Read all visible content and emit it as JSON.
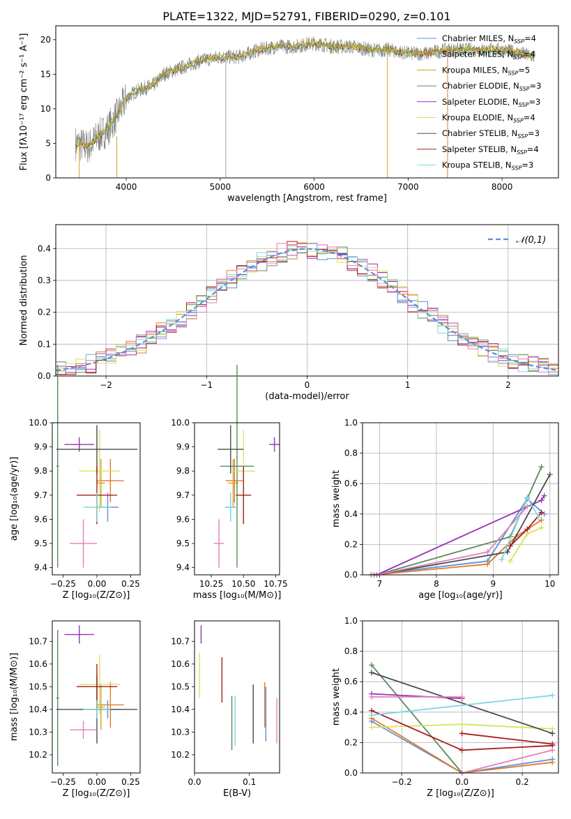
{
  "figure_title": "PLATE=1322, MJD=52791, FIBERID=0290, z=0.101",
  "colors": {
    "Chabrier MILES": "#5b8fd6",
    "Salpeter MILES": "#e27a2a",
    "Kroupa MILES": "#c9a227",
    "Chabrier ELODIE": "#5a8a5a",
    "Salpeter ELODIE": "#9a2fb8",
    "Kroupa ELODIE": "#d6e45a",
    "Chabrier STELIB": "#4b4b4b",
    "Salpeter STELIB": "#a81c1c",
    "Kroupa STELIB": "#7fd6e0",
    "Pink": "#e27fb8",
    "Normal": "#5b8fd6"
  },
  "chart_data": [
    {
      "id": "spectrum",
      "type": "line",
      "xlabel": "wavelength [Angstrom, rest frame]",
      "ylabel": "Flux [fλ10⁻¹⁷ erg cm⁻² s⁻¹ A⁻¹]",
      "xlim": [
        3250,
        8600
      ],
      "ylim": [
        0,
        22
      ],
      "xticks": [
        4000,
        5000,
        6000,
        7000,
        8000
      ],
      "yticks": [
        0,
        5,
        10,
        15,
        20
      ],
      "legend_position": "right",
      "legend": [
        {
          "label": "Chabrier MILES, N",
          "sub": "SSP",
          "n": "=4"
        },
        {
          "label": "Salpeter MILES, N",
          "sub": "SSP",
          "n": "=4"
        },
        {
          "label": "Kroupa MILES, N",
          "sub": "SSP",
          "n": "=5"
        },
        {
          "label": "Chabrier ELODIE, N",
          "sub": "SSP",
          "n": "=3"
        },
        {
          "label": "Salpeter ELODIE, N",
          "sub": "SSP",
          "n": "=3"
        },
        {
          "label": "Kroupa ELODIE, N",
          "sub": "SSP",
          "n": "=4"
        },
        {
          "label": "Chabrier STELIB, N",
          "sub": "SSP",
          "n": "=3"
        },
        {
          "label": "Salpeter STELIB, N",
          "sub": "SSP",
          "n": "=4"
        },
        {
          "label": "Kroupa STELIB, N",
          "sub": "SSP",
          "n": "=3"
        }
      ],
      "observed_trend": {
        "x": [
          3460,
          3600,
          3700,
          3800,
          3900,
          4000,
          4100,
          4200,
          4300,
          4400,
          4500,
          4600,
          4800,
          5000,
          5200,
          5400,
          5600,
          5800,
          6000,
          6200,
          6400,
          6600,
          6800,
          7000,
          7200,
          7400,
          7600,
          7800,
          8000,
          8200,
          8350
        ],
        "y": [
          5.0,
          4.5,
          6.0,
          7.0,
          9.0,
          11.5,
          12.5,
          13.0,
          13.5,
          15.0,
          15.5,
          16.0,
          17.0,
          17.5,
          17.5,
          18.5,
          19.0,
          19.0,
          19.5,
          19.0,
          19.0,
          18.5,
          18.5,
          18.0,
          18.0,
          18.5,
          18.5,
          18.5,
          18.5,
          18.0,
          17.5
        ]
      },
      "spikes": [
        {
          "x": 3500,
          "y1": 5,
          "y2": 0
        },
        {
          "x": 3900,
          "y1": 6,
          "y2": 0
        },
        {
          "x": 5060,
          "y1": 18,
          "y2": 0
        },
        {
          "x": 6780,
          "y1": 19,
          "y2": 0
        },
        {
          "x": 7420,
          "y1": 19,
          "y2": 0
        }
      ]
    },
    {
      "id": "residuals",
      "type": "area",
      "xlabel": "(data-model)/error",
      "ylabel": "Normed distribution",
      "xlim": [
        -2.5,
        2.5
      ],
      "ylim": [
        0,
        0.475
      ],
      "xticks": [
        -2,
        -1,
        0,
        1,
        2
      ],
      "xtick_labels": [
        "−2",
        "−1",
        "0",
        "1",
        "2"
      ],
      "yticks": [
        0,
        0.1,
        0.2,
        0.3,
        0.4
      ],
      "ytick_labels": [
        "0.0",
        "0.1",
        "0.2",
        "0.3",
        "0.4"
      ],
      "grid": true,
      "legend_position": "top-right",
      "legend_label": "𝒩(0,1)",
      "series_note": "stepped histograms, one per model, around a standard normal curve"
    },
    {
      "id": "age_vs_Z",
      "type": "scatter",
      "xlabel": "Z [log₁₀(Z/Z⊙)]",
      "ylabel": "age  [log₁₀(age/yr)]",
      "xlim": [
        -0.33,
        0.32
      ],
      "ylim": [
        9.37,
        10.0
      ],
      "xticks": [
        -0.25,
        0.0,
        0.25
      ],
      "xtick_labels": [
        "−0.25",
        "0.00",
        "0.25"
      ],
      "yticks": [
        9.4,
        9.5,
        9.6,
        9.7,
        9.8,
        9.9,
        10.0
      ],
      "ytick_labels": [
        "9.4",
        "9.5",
        "9.6",
        "9.7",
        "9.8",
        "9.9",
        "10.0"
      ],
      "points": [
        {
          "model": "Chabrier MILES",
          "x": 0.08,
          "xerr": 0.08,
          "y": 9.65,
          "yerr": 0.06
        },
        {
          "model": "Salpeter MILES",
          "x": 0.1,
          "xerr": 0.1,
          "y": 9.76,
          "yerr": 0.09
        },
        {
          "model": "Kroupa MILES",
          "x": 0.03,
          "xerr": 0.03,
          "y": 9.75,
          "yerr": 0.1
        },
        {
          "model": "Chabrier ELODIE",
          "x": -0.29,
          "xerr": 0.01,
          "y": 9.82,
          "yerr": 0.42
        },
        {
          "model": "Salpeter ELODIE",
          "x": -0.13,
          "xerr": 0.11,
          "y": 9.91,
          "yerr": 0.03
        },
        {
          "model": "Kroupa ELODIE",
          "x": 0.02,
          "xerr": 0.15,
          "y": 9.8,
          "yerr": 0.17
        },
        {
          "model": "Chabrier STELIB",
          "x": 0.0,
          "xerr": 0.3,
          "y": 9.89,
          "yerr": 0.1
        },
        {
          "model": "Salpeter STELIB",
          "x": 0.0,
          "xerr": 0.15,
          "y": 9.7,
          "yerr": 0.12
        },
        {
          "model": "Kroupa STELIB",
          "x": 0.0,
          "xerr": 0.1,
          "y": 9.65,
          "yerr": 0.06
        },
        {
          "model": "Pink",
          "x": -0.1,
          "xerr": 0.1,
          "y": 9.5,
          "yerr": 0.1
        }
      ]
    },
    {
      "id": "age_vs_mass",
      "type": "scatter",
      "xlabel": "mass [log₁₀(M/M⊙)]",
      "xlim": [
        10.12,
        10.78
      ],
      "ylim": [
        9.37,
        10.0
      ],
      "xticks": [
        10.25,
        10.5,
        10.75
      ],
      "xtick_labels": [
        "10.25",
        "10.50",
        "10.75"
      ],
      "yticks": [
        9.4,
        9.5,
        9.6,
        9.7,
        9.8,
        9.9,
        10.0
      ],
      "ytick_labels": [
        "9.4",
        "9.5",
        "9.6",
        "9.7",
        "9.8",
        "9.9",
        "10.0"
      ],
      "points": [
        {
          "model": "Chabrier MILES",
          "x": 10.4,
          "xerr": 0.04,
          "y": 9.65,
          "yerr": 0.06
        },
        {
          "model": "Salpeter MILES",
          "x": 10.43,
          "xerr": 0.07,
          "y": 9.76,
          "yerr": 0.09
        },
        {
          "model": "Kroupa MILES",
          "x": 10.42,
          "xerr": 0.04,
          "y": 9.75,
          "yerr": 0.1
        },
        {
          "model": "Chabrier ELODIE",
          "x": 10.45,
          "xerr": 0.13,
          "y": 9.82,
          "yerr": 0.42
        },
        {
          "model": "Salpeter ELODIE",
          "x": 10.74,
          "xerr": 0.04,
          "y": 9.91,
          "yerr": 0.03
        },
        {
          "model": "Kroupa ELODIE",
          "x": 10.5,
          "xerr": 0.09,
          "y": 9.8,
          "yerr": 0.17
        },
        {
          "model": "Chabrier STELIB",
          "x": 10.4,
          "xerr": 0.1,
          "y": 9.89,
          "yerr": 0.1
        },
        {
          "model": "Salpeter STELIB",
          "x": 10.5,
          "xerr": 0.06,
          "y": 9.7,
          "yerr": 0.12
        },
        {
          "model": "Kroupa STELIB",
          "x": 10.4,
          "xerr": 0.03,
          "y": 9.65,
          "yerr": 0.06
        },
        {
          "model": "Pink",
          "x": 10.31,
          "xerr": 0.04,
          "y": 9.5,
          "yerr": 0.1
        }
      ]
    },
    {
      "id": "weight_vs_age",
      "type": "line",
      "xlabel": "age  [log₁₀(age/yr)]",
      "ylabel": "mass weight",
      "xlim": [
        6.7,
        10.15
      ],
      "ylim": [
        0,
        1.0
      ],
      "xticks": [
        7,
        8,
        9,
        10
      ],
      "yticks": [
        0,
        0.2,
        0.4,
        0.6,
        0.8,
        1.0
      ],
      "ytick_labels": [
        "0.0",
        "0.2",
        "0.4",
        "0.6",
        "0.8",
        "1.0"
      ],
      "grid": true,
      "series": [
        {
          "model": "Chabrier MILES",
          "x": [
            6.85,
            8.9,
            9.6,
            9.9
          ],
          "y": [
            0.0,
            0.09,
            0.5,
            0.4
          ]
        },
        {
          "model": "Salpeter MILES",
          "x": [
            6.9,
            8.9,
            9.4,
            9.85
          ],
          "y": [
            0.0,
            0.07,
            0.25,
            0.36
          ]
        },
        {
          "model": "Chabrier ELODIE",
          "x": [
            6.95,
            9.3,
            9.85
          ],
          "y": [
            0.0,
            0.25,
            0.71
          ]
        },
        {
          "model": "Salpeter ELODIE",
          "x": [
            6.95,
            9.85,
            9.9
          ],
          "y": [
            0.0,
            0.49,
            0.52
          ]
        },
        {
          "model": "Kroupa ELODIE",
          "x": [
            9.3,
            9.6,
            9.85
          ],
          "y": [
            0.09,
            0.27,
            0.31
          ]
        },
        {
          "model": "Chabrier STELIB",
          "x": [
            6.95,
            9.25,
            10.0
          ],
          "y": [
            0.0,
            0.15,
            0.66
          ]
        },
        {
          "model": "Salpeter STELIB",
          "x": [
            9.3,
            9.6,
            9.85
          ],
          "y": [
            0.19,
            0.3,
            0.41
          ]
        },
        {
          "model": "Kroupa STELIB",
          "x": [
            9.15,
            9.6,
            9.8
          ],
          "y": [
            0.1,
            0.51,
            0.38
          ]
        },
        {
          "model": "Pink",
          "x": [
            6.95,
            8.9,
            9.6
          ],
          "y": [
            0.0,
            0.15,
            0.45
          ]
        }
      ]
    },
    {
      "id": "mass_vs_Z",
      "type": "scatter",
      "xlabel": "Z [log₁₀(Z/Z⊙)]",
      "ylabel": "mass [log₁₀(M/M⊙)]",
      "xlim": [
        -0.33,
        0.32
      ],
      "ylim": [
        10.12,
        10.79
      ],
      "xticks": [
        -0.25,
        0.0,
        0.25
      ],
      "xtick_labels": [
        "−0.25",
        "0.00",
        "0.25"
      ],
      "yticks": [
        10.2,
        10.3,
        10.4,
        10.5,
        10.6,
        10.7
      ],
      "points": [
        {
          "model": "Chabrier MILES",
          "x": 0.08,
          "xerr": 0.08,
          "y": 10.4,
          "yerr": 0.04
        },
        {
          "model": "Salpeter MILES",
          "x": 0.1,
          "xerr": 0.1,
          "y": 10.42,
          "yerr": 0.1
        },
        {
          "model": "Kroupa MILES",
          "x": 0.03,
          "xerr": 0.03,
          "y": 10.41,
          "yerr": 0.1
        },
        {
          "model": "Chabrier ELODIE",
          "x": -0.29,
          "xerr": 0.01,
          "y": 10.45,
          "yerr": 0.3
        },
        {
          "model": "Salpeter ELODIE",
          "x": -0.13,
          "xerr": 0.11,
          "y": 10.73,
          "yerr": 0.04
        },
        {
          "model": "Kroupa ELODIE",
          "x": 0.02,
          "xerr": 0.15,
          "y": 10.51,
          "yerr": 0.13
        },
        {
          "model": "Chabrier STELIB",
          "x": 0.0,
          "xerr": 0.3,
          "y": 10.4,
          "yerr": 0.15
        },
        {
          "model": "Salpeter STELIB",
          "x": 0.0,
          "xerr": 0.15,
          "y": 10.5,
          "yerr": 0.1
        },
        {
          "model": "Kroupa STELIB",
          "x": 0.0,
          "xerr": 0.1,
          "y": 10.4,
          "yerr": 0.04
        },
        {
          "model": "Pink",
          "x": -0.1,
          "xerr": 0.1,
          "y": 10.31,
          "yerr": 0.04
        }
      ]
    },
    {
      "id": "mass_vs_EBV",
      "type": "scatter",
      "xlabel": "E(B-V)",
      "xlim": [
        0,
        0.155
      ],
      "ylim": [
        10.12,
        10.79
      ],
      "xticks": [
        0.0,
        0.1
      ],
      "xtick_labels": [
        "0.0",
        "0.1"
      ],
      "yticks": [
        10.2,
        10.3,
        10.4,
        10.5,
        10.6,
        10.7
      ],
      "points": [
        {
          "model": "Kroupa ELODIE",
          "x": 0.009,
          "y": 10.55,
          "yerr": 0.1
        },
        {
          "model": "Salpeter ELODIE",
          "x": 0.012,
          "y": 10.73,
          "yerr": 0.04
        },
        {
          "model": "Salpeter STELIB",
          "x": 0.05,
          "y": 10.53,
          "yerr": 0.1
        },
        {
          "model": "Chabrier ELODIE",
          "x": 0.068,
          "y": 10.34,
          "yerr": 0.12
        },
        {
          "model": "Kroupa STELIB",
          "x": 0.074,
          "y": 10.35,
          "yerr": 0.11
        },
        {
          "model": "Chabrier STELIB",
          "x": 0.107,
          "y": 10.38,
          "yerr": 0.13
        },
        {
          "model": "Salpeter MILES",
          "x": 0.128,
          "y": 10.42,
          "yerr": 0.1
        },
        {
          "model": "Chabrier MILES",
          "x": 0.13,
          "y": 10.38,
          "yerr": 0.12
        },
        {
          "model": "Pink",
          "x": 0.15,
          "y": 10.35,
          "yerr": 0.1
        }
      ]
    },
    {
      "id": "weight_vs_Z",
      "type": "line",
      "xlabel": "Z [log₁₀(Z/Z⊙)]",
      "ylabel": "mass weight",
      "xlim": [
        -0.33,
        0.32
      ],
      "ylim": [
        0,
        1.0
      ],
      "xticks": [
        -0.2,
        0.0,
        0.2
      ],
      "xtick_labels": [
        "−0.2",
        "0.0",
        "0.2"
      ],
      "yticks": [
        0,
        0.2,
        0.4,
        0.6,
        0.8,
        1.0
      ],
      "ytick_labels": [
        "0.0",
        "0.2",
        "0.4",
        "0.6",
        "0.8",
        "1.0"
      ],
      "grid": true,
      "series": [
        {
          "model": "Chabrier MILES",
          "x": [
            -0.3,
            0.0,
            0.3
          ],
          "y": [
            0.34,
            0.0,
            0.09
          ]
        },
        {
          "model": "Salpeter MILES",
          "x": [
            -0.3,
            0.0,
            0.3
          ],
          "y": [
            0.36,
            0.0,
            0.07
          ]
        },
        {
          "model": "Chabrier ELODIE",
          "x": [
            -0.3,
            0.0
          ],
          "y": [
            0.71,
            0.0
          ]
        },
        {
          "model": "Salpeter ELODIE",
          "x": [
            -0.3,
            0.0
          ],
          "y": [
            0.52,
            0.49
          ]
        },
        {
          "model": "Kroupa ELODIE",
          "x": [
            -0.3,
            0.0,
            0.3
          ],
          "y": [
            0.3,
            0.32,
            0.29
          ]
        },
        {
          "model": "Chabrier STELIB",
          "x": [
            -0.3,
            0.3
          ],
          "y": [
            0.66,
            0.26
          ]
        },
        {
          "model": "Salpeter STELIB",
          "x": [
            -0.3,
            0.0,
            0.3
          ],
          "y": [
            0.41,
            0.15,
            0.18
          ]
        },
        {
          "model": "Salpeter STELIB",
          "x": [
            0.0,
            0.3
          ],
          "y": [
            0.26,
            0.19
          ]
        },
        {
          "model": "Kroupa STELIB",
          "x": [
            -0.3,
            0.3
          ],
          "y": [
            0.38,
            0.51
          ]
        },
        {
          "model": "Pink",
          "x": [
            0.0,
            0.3
          ],
          "y": [
            0.0,
            0.15
          ]
        },
        {
          "model": "Pink",
          "x": [
            -0.3,
            0.0
          ],
          "y": [
            0.5,
            0.5
          ]
        }
      ]
    }
  ]
}
